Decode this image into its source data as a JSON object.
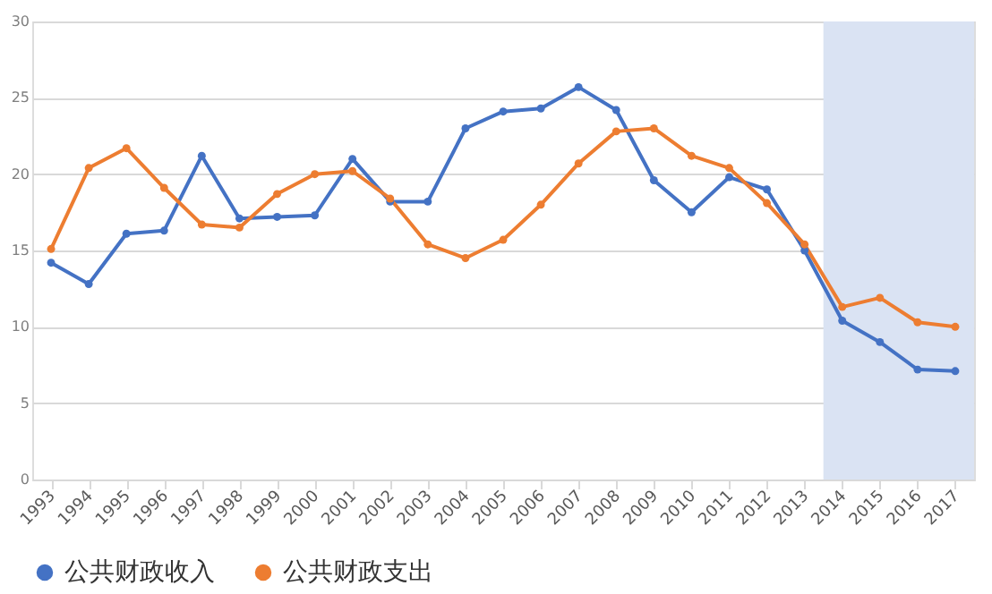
{
  "chart_data": {
    "type": "line",
    "categories": [
      "1993",
      "1994",
      "1995",
      "1996",
      "1997",
      "1998",
      "1999",
      "2000",
      "2001",
      "2002",
      "2003",
      "2004",
      "2005",
      "2006",
      "2007",
      "2008",
      "2009",
      "2010",
      "2011",
      "2012",
      "2013",
      "2014",
      "2015",
      "2016",
      "2017"
    ],
    "series": [
      {
        "name": "公共财政收入",
        "color": "#4472c4",
        "values": [
          14.2,
          12.8,
          16.1,
          16.3,
          21.2,
          17.1,
          17.2,
          17.3,
          21.0,
          18.2,
          18.2,
          23.0,
          24.1,
          24.3,
          25.7,
          24.2,
          19.6,
          17.5,
          19.8,
          19.0,
          15.0,
          10.4,
          9.0,
          7.2,
          7.1
        ]
      },
      {
        "name": "公共财政支出",
        "color": "#ed7d31",
        "values": [
          15.1,
          20.4,
          21.7,
          19.1,
          16.7,
          16.5,
          18.7,
          20.0,
          20.2,
          18.4,
          15.4,
          14.5,
          15.7,
          18.0,
          20.7,
          22.8,
          23.0,
          21.2,
          20.4,
          18.1,
          15.4,
          11.3,
          11.9,
          10.3,
          10.0
        ]
      }
    ],
    "ylim": [
      0,
      30
    ],
    "yticks": [
      0,
      5,
      10,
      15,
      20,
      25,
      30
    ],
    "bands": [
      {
        "axis": "x",
        "from": "2014",
        "to": "2017",
        "color": "#dae3f3"
      }
    ],
    "grid": "y",
    "legend": "bottom",
    "marker": "circle",
    "line_style": "solid"
  }
}
